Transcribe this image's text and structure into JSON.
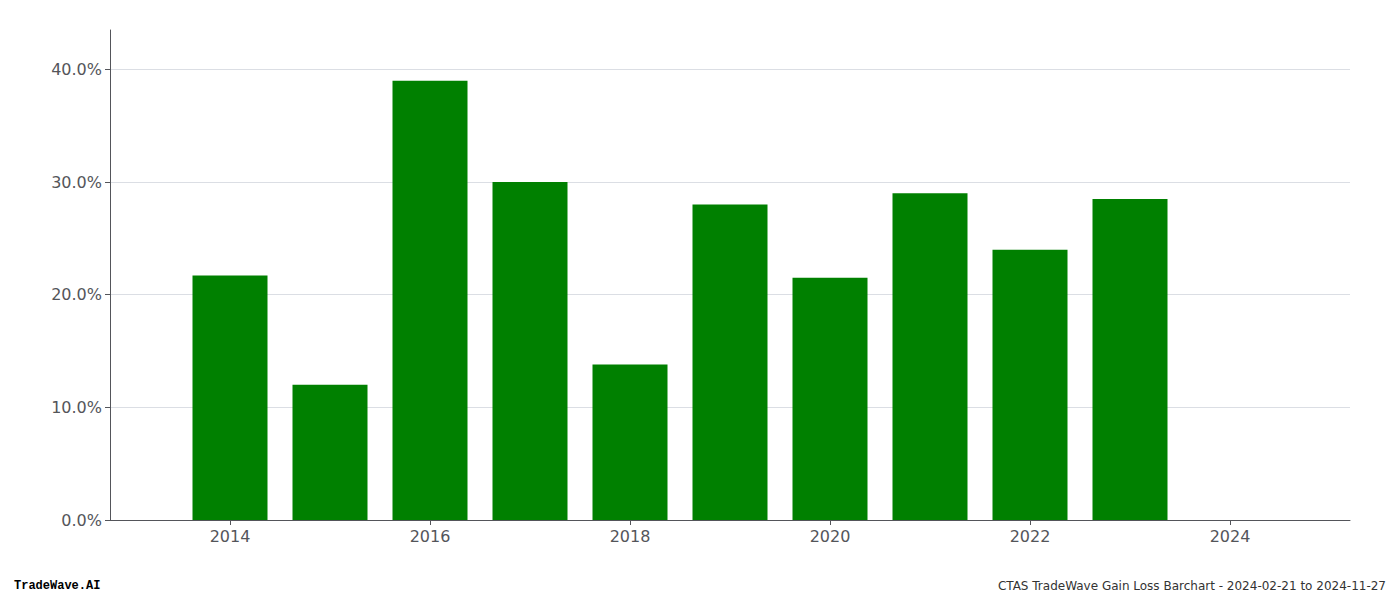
{
  "chart_data": {
    "type": "bar",
    "x": [
      2014,
      2015,
      2016,
      2017,
      2018,
      2019,
      2020,
      2021,
      2022,
      2023
    ],
    "values": [
      0.217,
      0.12,
      0.39,
      0.3,
      0.138,
      0.28,
      0.215,
      0.29,
      0.24,
      0.285
    ],
    "color": "#008000",
    "xlim": [
      2012.8,
      2025.2
    ],
    "xticks": [
      2014,
      2016,
      2018,
      2020,
      2022,
      2024
    ],
    "ylim": [
      0,
      0.435
    ],
    "yticks": [
      {
        "value": 0.0,
        "label": "0.0%"
      },
      {
        "value": 0.1,
        "label": "10.0%"
      },
      {
        "value": 0.2,
        "label": "20.0%"
      },
      {
        "value": 0.3,
        "label": "30.0%"
      },
      {
        "value": 0.4,
        "label": "40.0%"
      }
    ],
    "grid": true,
    "annotations": [
      "TradeWave.AI",
      "CTAS TradeWave Gain Loss Barchart - 2024-02-21 to 2024-11-27"
    ]
  }
}
